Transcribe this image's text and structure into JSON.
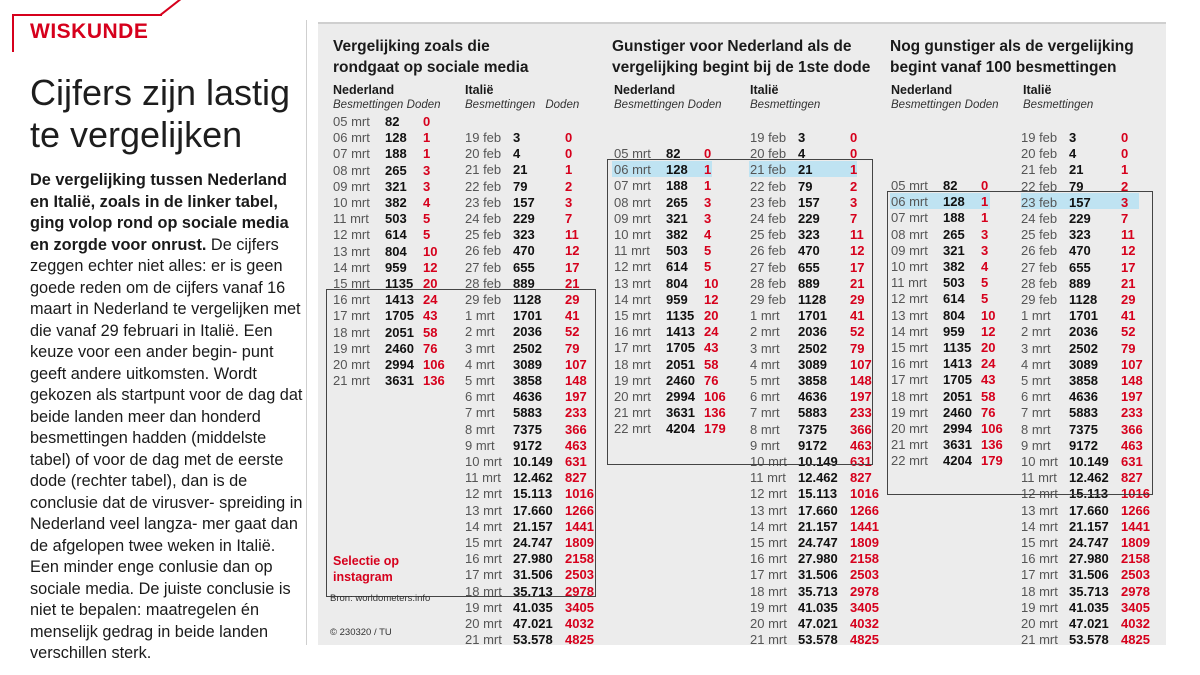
{
  "tag": "WISKUNDE",
  "headline": "Cijfers zijn lastig te vergelijken",
  "article": {
    "lead": "De vergelijking tussen Nederland en Italië, zoals in de linker tabel, ging volop rond op sociale media en zorgde voor onrust.",
    "body": " De cijfers zeggen echter niet alles: er is geen goede reden om de cijfers vanaf 16 maart in Nederland te vergelijken met die vanaf 29 februari in Italië. Een keuze voor een ander begin- punt geeft andere uitkomsten. Wordt gekozen als startpunt voor de dag dat beide landen meer dan honderd besmettingen hadden (middelste tabel) of voor de dag met de eerste dode (rechter tabel), dan is de conclusie dat de virusver- spreiding in Nederland veel langza- mer gaat dan de afgelopen twee weken in Italië. Een minder enge conlusie dan op sociale media. De juiste conclusie is niet te bepalen: maatregelen én menselijk gedrag in beide landen verschillen sterk."
  },
  "sections": [
    {
      "title_1": "Vergelijking zoals die",
      "title_2": "rondgaat op sociale media"
    },
    {
      "title_1": "Gunstiger voor Nederland als de",
      "title_2": "vergelijking begint bij de 1ste dode"
    },
    {
      "title_1": "Nog gunstiger als de vergelijking",
      "title_2": "begint vanaf 100 besmettingen"
    }
  ],
  "headers": {
    "nl": "Nederland",
    "it": "Italië",
    "cases": "Besmettingen",
    "deaths": "Doden"
  },
  "nl_data": [
    {
      "date": "05 mrt",
      "cases": "82",
      "deaths": "0"
    },
    {
      "date": "06 mrt",
      "cases": "128",
      "deaths": "1"
    },
    {
      "date": "07 mrt",
      "cases": "188",
      "deaths": "1"
    },
    {
      "date": "08 mrt",
      "cases": "265",
      "deaths": "3"
    },
    {
      "date": "09 mrt",
      "cases": "321",
      "deaths": "3"
    },
    {
      "date": "10 mrt",
      "cases": "382",
      "deaths": "4"
    },
    {
      "date": "11 mrt",
      "cases": "503",
      "deaths": "5"
    },
    {
      "date": "12 mrt",
      "cases": "614",
      "deaths": "5"
    },
    {
      "date": "13 mrt",
      "cases": "804",
      "deaths": "10"
    },
    {
      "date": "14 mrt",
      "cases": "959",
      "deaths": "12"
    },
    {
      "date": "15 mrt",
      "cases": "1135",
      "deaths": "20"
    },
    {
      "date": "16 mrt",
      "cases": "1413",
      "deaths": "24"
    },
    {
      "date": "17 mrt",
      "cases": "1705",
      "deaths": "43"
    },
    {
      "date": "18 mrt",
      "cases": "2051",
      "deaths": "58"
    },
    {
      "date": "19 mrt",
      "cases": "2460",
      "deaths": "76"
    },
    {
      "date": "20 mrt",
      "cases": "2994",
      "deaths": "106"
    },
    {
      "date": "21 mrt",
      "cases": "3631",
      "deaths": "136"
    },
    {
      "date": "22 mrt",
      "cases": "4204",
      "deaths": "179"
    }
  ],
  "it_data": [
    {
      "date": "19 feb",
      "cases": "3",
      "deaths": "0"
    },
    {
      "date": "20 feb",
      "cases": "4",
      "deaths": "0"
    },
    {
      "date": "21 feb",
      "cases": "21",
      "deaths": "1"
    },
    {
      "date": "22 feb",
      "cases": "79",
      "deaths": "2"
    },
    {
      "date": "23 feb",
      "cases": "157",
      "deaths": "3"
    },
    {
      "date": "24 feb",
      "cases": "229",
      "deaths": "7"
    },
    {
      "date": "25 feb",
      "cases": "323",
      "deaths": "11"
    },
    {
      "date": "26 feb",
      "cases": "470",
      "deaths": "12"
    },
    {
      "date": "27 feb",
      "cases": "655",
      "deaths": "17"
    },
    {
      "date": "28 feb",
      "cases": "889",
      "deaths": "21"
    },
    {
      "date": "29 feb",
      "cases": "1128",
      "deaths": "29"
    },
    {
      "date": "1 mrt",
      "cases": "1701",
      "deaths": "41"
    },
    {
      "date": "2 mrt",
      "cases": "2036",
      "deaths": "52"
    },
    {
      "date": "3 mrt",
      "cases": "2502",
      "deaths": "79"
    },
    {
      "date": "4 mrt",
      "cases": "3089",
      "deaths": "107"
    },
    {
      "date": "5 mrt",
      "cases": "3858",
      "deaths": "148"
    },
    {
      "date": "6 mrt",
      "cases": "4636",
      "deaths": "197"
    },
    {
      "date": "7 mrt",
      "cases": "5883",
      "deaths": "233"
    },
    {
      "date": "8 mrt",
      "cases": "7375",
      "deaths": "366"
    },
    {
      "date": "9 mrt",
      "cases": "9172",
      "deaths": "463"
    },
    {
      "date": "10 mrt",
      "cases": "10.149",
      "deaths": "631"
    },
    {
      "date": "11 mrt",
      "cases": "12.462",
      "deaths": "827"
    },
    {
      "date": "12 mrt",
      "cases": "15.113",
      "deaths": "1016"
    },
    {
      "date": "13 mrt",
      "cases": "17.660",
      "deaths": "1266"
    },
    {
      "date": "14 mrt",
      "cases": "21.157",
      "deaths": "1441"
    },
    {
      "date": "15 mrt",
      "cases": "24.747",
      "deaths": "1809"
    },
    {
      "date": "16 mrt",
      "cases": "27.980",
      "deaths": "2158"
    },
    {
      "date": "17 mrt",
      "cases": "31.506",
      "deaths": "2503"
    },
    {
      "date": "18 mrt",
      "cases": "35.713",
      "deaths": "2978"
    },
    {
      "date": "19 mrt",
      "cases": "41.035",
      "deaths": "3405"
    },
    {
      "date": "20 mrt",
      "cases": "47.021",
      "deaths": "4032"
    },
    {
      "date": "21 mrt",
      "cases": "53.578",
      "deaths": "4825"
    }
  ],
  "selection_label": "Selectie op instagram",
  "source": "Bron: worldometers.info",
  "credit": "© 230320 / TU",
  "colors": {
    "accent": "#d6001c",
    "panel": "#ececec",
    "highlight": "#bfe3f2"
  }
}
